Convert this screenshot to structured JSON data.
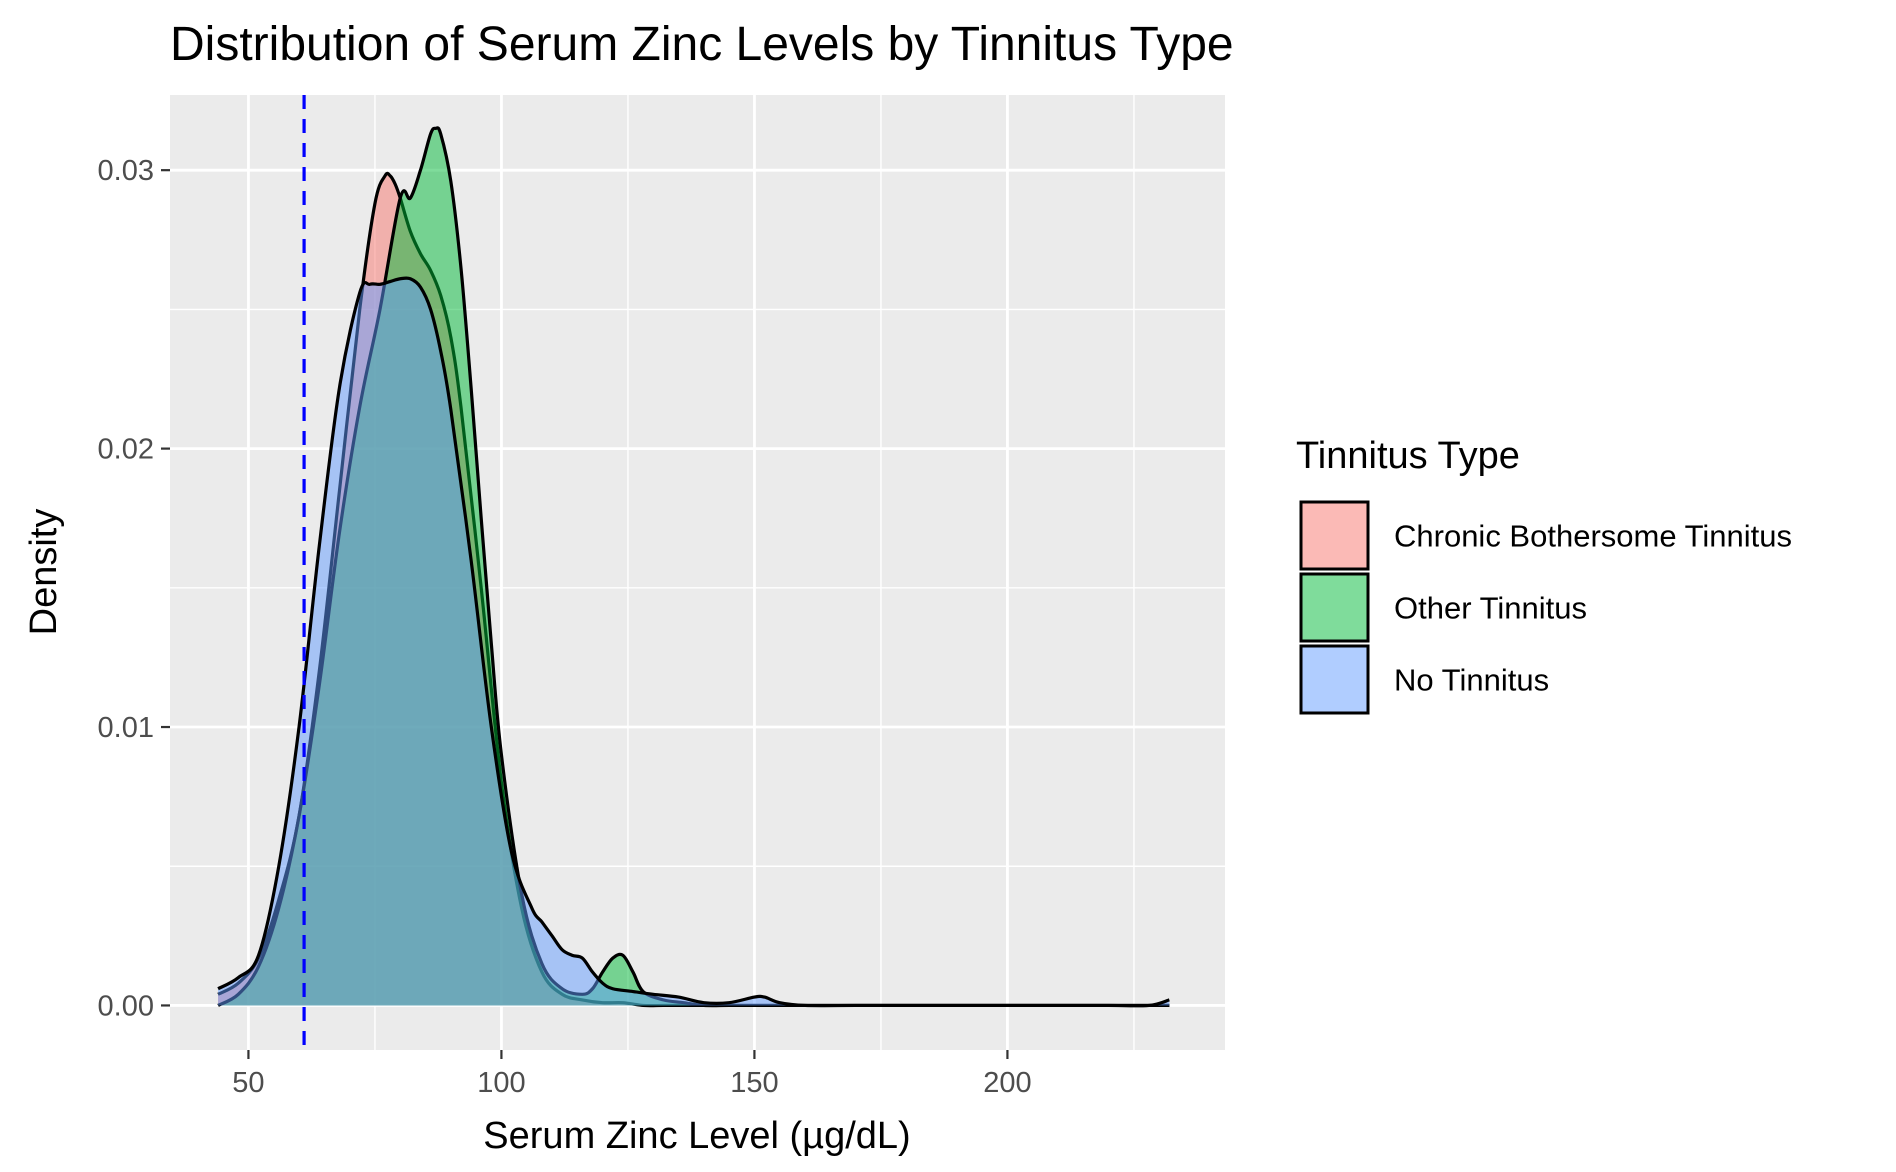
{
  "chart_data": {
    "type": "area",
    "title": "Distribution of Serum Zinc Levels by Tinnitus Type",
    "xlabel": "Serum Zinc Level (µg/dL)",
    "ylabel": "Density",
    "xlim": [
      34.5,
      243
    ],
    "ylim": [
      -0.0016,
      0.0327
    ],
    "x_ticks": [
      50,
      100,
      150,
      200
    ],
    "x_tick_labels": [
      "50",
      "100",
      "150",
      "200"
    ],
    "y_ticks": [
      0,
      0.01,
      0.02,
      0.03
    ],
    "y_tick_labels": [
      "0.00",
      "0.01",
      "0.02",
      "0.03"
    ],
    "grid": true,
    "reference_line": {
      "x": 61,
      "color": "#0000ff",
      "style": "dashed"
    },
    "legend": {
      "title": "Tinnitus Type",
      "position": "right",
      "entries": [
        "Chronic Bothersome Tinnitus",
        "Other Tinnitus",
        "No Tinnitus"
      ]
    },
    "series": [
      {
        "name": "Chronic Bothersome Tinnitus",
        "color": "#F8766D",
        "x": [
          44,
          48,
          52,
          56,
          60,
          64,
          68,
          72,
          75,
          77,
          78,
          79,
          80,
          82,
          84,
          86,
          88,
          90,
          92,
          96,
          100,
          104,
          108,
          112,
          116,
          120,
          124,
          128,
          132,
          136,
          140,
          145,
          150,
          155,
          160,
          170,
          180,
          190,
          200,
          210,
          220,
          232
        ],
        "y": [
          0.0004,
          0.0008,
          0.0017,
          0.0038,
          0.0068,
          0.012,
          0.0185,
          0.025,
          0.0288,
          0.0298,
          0.0298,
          0.0295,
          0.029,
          0.0278,
          0.027,
          0.0264,
          0.0255,
          0.024,
          0.0215,
          0.015,
          0.008,
          0.0035,
          0.0012,
          0.0004,
          0.0002,
          0.0001,
          0.0001,
          0.0,
          0.0,
          0.0,
          0.0,
          0.0,
          0.0,
          0.0,
          0.0,
          0.0,
          0.0,
          0.0,
          0.0,
          0.0,
          0.0,
          0.0
        ]
      },
      {
        "name": "Other Tinnitus",
        "color": "#00BA38",
        "x": [
          44,
          48,
          52,
          56,
          60,
          64,
          68,
          72,
          76,
          80,
          82,
          84,
          86,
          87,
          88,
          90,
          92,
          94,
          96,
          98,
          100,
          104,
          108,
          112,
          116,
          118,
          120,
          122,
          124,
          126,
          128,
          132,
          136,
          140,
          145,
          150,
          160,
          180,
          200,
          220,
          232
        ],
        "y": [
          0.0,
          0.0004,
          0.0014,
          0.0035,
          0.0068,
          0.0115,
          0.017,
          0.0215,
          0.025,
          0.029,
          0.029,
          0.03,
          0.0313,
          0.0315,
          0.0313,
          0.0296,
          0.0265,
          0.0222,
          0.0175,
          0.013,
          0.009,
          0.004,
          0.0015,
          0.0006,
          0.0004,
          0.0006,
          0.0012,
          0.0017,
          0.0018,
          0.0012,
          0.0005,
          0.0002,
          0.0001,
          0.0,
          0.0,
          0.0,
          0.0,
          0.0,
          0.0,
          0.0,
          0.0
        ]
      },
      {
        "name": "No Tinnitus",
        "color": "#619CFF",
        "x": [
          44,
          48,
          52,
          56,
          60,
          64,
          68,
          72,
          74,
          76,
          78,
          80,
          82,
          84,
          86,
          88,
          90,
          94,
          98,
          102,
          106,
          108,
          110,
          112,
          114,
          116,
          118,
          120,
          122,
          126,
          130,
          135,
          140,
          145,
          150,
          152,
          155,
          160,
          170,
          180,
          200,
          220,
          228,
          232
        ],
        "y": [
          0.0006,
          0.001,
          0.0018,
          0.005,
          0.01,
          0.0165,
          0.0222,
          0.0256,
          0.0259,
          0.0259,
          0.026,
          0.0261,
          0.0261,
          0.0258,
          0.025,
          0.0235,
          0.0214,
          0.016,
          0.01,
          0.0055,
          0.0035,
          0.003,
          0.0025,
          0.002,
          0.0018,
          0.0017,
          0.0012,
          0.0008,
          0.0006,
          0.0005,
          0.0004,
          0.0003,
          0.0001,
          0.0001,
          0.0003,
          0.0003,
          0.0001,
          0.0,
          0.0,
          0.0,
          0.0,
          0.0,
          0.0,
          0.0002
        ]
      }
    ]
  }
}
